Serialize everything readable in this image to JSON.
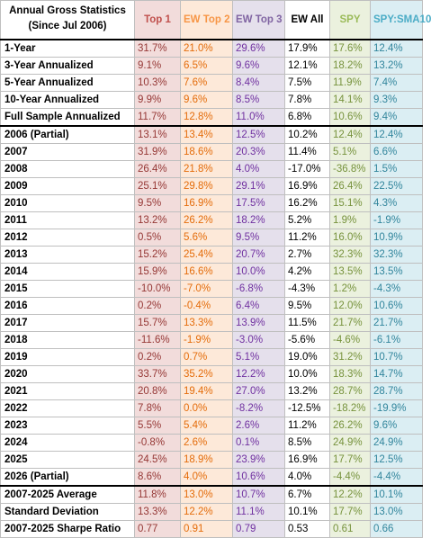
{
  "header": {
    "title_line1": "Annual Gross Statistics",
    "title_line2": "(Since Jul 2006)",
    "columns": [
      "Top 1",
      "EW Top 2",
      "EW Top 3",
      "EW All",
      "SPY",
      "SPY:SMA10"
    ]
  },
  "rows": [
    {
      "label": "1-Year",
      "values": [
        "31.7%",
        "21.0%",
        "29.6%",
        "17.9%",
        "17.6%",
        "12.4%"
      ]
    },
    {
      "label": "3-Year Annualized",
      "values": [
        "9.1%",
        "6.5%",
        "9.6%",
        "12.1%",
        "18.2%",
        "13.2%"
      ]
    },
    {
      "label": "5-Year Annualized",
      "values": [
        "10.3%",
        "7.6%",
        "8.4%",
        "7.5%",
        "11.9%",
        "7.4%"
      ]
    },
    {
      "label": "10-Year Annualized",
      "values": [
        "9.9%",
        "9.6%",
        "8.5%",
        "7.8%",
        "14.1%",
        "9.3%"
      ]
    },
    {
      "label": "Full Sample Annualized",
      "values": [
        "11.7%",
        "12.8%",
        "11.0%",
        "6.8%",
        "10.6%",
        "9.4%"
      ]
    },
    {
      "label": "2006 (Partial)",
      "values": [
        "13.1%",
        "13.4%",
        "12.5%",
        "10.2%",
        "12.4%",
        "12.4%"
      ]
    },
    {
      "label": "2007",
      "values": [
        "31.9%",
        "18.6%",
        "20.3%",
        "11.4%",
        "5.1%",
        "6.6%"
      ]
    },
    {
      "label": "2008",
      "values": [
        "26.4%",
        "21.8%",
        "4.0%",
        "-17.0%",
        "-36.8%",
        "1.5%"
      ]
    },
    {
      "label": "2009",
      "values": [
        "25.1%",
        "29.8%",
        "29.1%",
        "16.9%",
        "26.4%",
        "22.5%"
      ]
    },
    {
      "label": "2010",
      "values": [
        "9.5%",
        "16.9%",
        "17.5%",
        "16.2%",
        "15.1%",
        "4.3%"
      ]
    },
    {
      "label": "2011",
      "values": [
        "13.2%",
        "26.2%",
        "18.2%",
        "5.2%",
        "1.9%",
        "-1.9%"
      ]
    },
    {
      "label": "2012",
      "values": [
        "0.5%",
        "5.6%",
        "9.5%",
        "11.2%",
        "16.0%",
        "10.9%"
      ]
    },
    {
      "label": "2013",
      "values": [
        "15.2%",
        "25.4%",
        "20.7%",
        "2.7%",
        "32.3%",
        "32.3%"
      ]
    },
    {
      "label": "2014",
      "values": [
        "15.9%",
        "16.6%",
        "10.0%",
        "4.2%",
        "13.5%",
        "13.5%"
      ]
    },
    {
      "label": "2015",
      "values": [
        "-10.0%",
        "-7.0%",
        "-6.8%",
        "-4.3%",
        "1.2%",
        "-4.3%"
      ]
    },
    {
      "label": "2016",
      "values": [
        "0.2%",
        "-0.4%",
        "6.4%",
        "9.5%",
        "12.0%",
        "10.6%"
      ]
    },
    {
      "label": "2017",
      "values": [
        "15.7%",
        "13.3%",
        "13.9%",
        "11.5%",
        "21.7%",
        "21.7%"
      ]
    },
    {
      "label": "2018",
      "values": [
        "-11.6%",
        "-1.9%",
        "-3.0%",
        "-5.6%",
        "-4.6%",
        "-6.1%"
      ]
    },
    {
      "label": "2019",
      "values": [
        "0.2%",
        "0.7%",
        "5.1%",
        "19.0%",
        "31.2%",
        "10.7%"
      ]
    },
    {
      "label": "2020",
      "values": [
        "33.7%",
        "35.2%",
        "12.2%",
        "10.0%",
        "18.3%",
        "14.7%"
      ]
    },
    {
      "label": "2021",
      "values": [
        "20.8%",
        "19.4%",
        "27.0%",
        "13.2%",
        "28.7%",
        "28.7%"
      ]
    },
    {
      "label": "2022",
      "values": [
        "7.8%",
        "0.0%",
        "-8.2%",
        "-12.5%",
        "-18.2%",
        "-19.9%"
      ]
    },
    {
      "label": "2023",
      "values": [
        "5.5%",
        "5.4%",
        "2.6%",
        "11.2%",
        "26.2%",
        "9.6%"
      ]
    },
    {
      "label": "2024",
      "values": [
        "-0.8%",
        "2.6%",
        "0.1%",
        "8.5%",
        "24.9%",
        "24.9%"
      ]
    },
    {
      "label": "2025",
      "values": [
        "24.5%",
        "18.9%",
        "23.9%",
        "16.9%",
        "17.7%",
        "12.5%"
      ]
    },
    {
      "label": "2026 (Partial)",
      "values": [
        "8.6%",
        "4.0%",
        "10.6%",
        "4.0%",
        "-4.4%",
        "-4.4%"
      ]
    },
    {
      "label": "2007-2025 Average",
      "values": [
        "11.8%",
        "13.0%",
        "10.7%",
        "6.7%",
        "12.2%",
        "10.1%"
      ]
    },
    {
      "label": "Standard Deviation",
      "values": [
        "13.3%",
        "12.2%",
        "11.1%",
        "10.1%",
        "17.7%",
        "13.0%"
      ]
    },
    {
      "label": "2007-2025 Sharpe Ratio",
      "values": [
        "0.77",
        "0.91",
        "0.79",
        "0.53",
        "0.61",
        "0.66"
      ]
    }
  ],
  "colors": {
    "top1": "#953735",
    "ew_top2": "#e46c0a",
    "ew_top3": "#7030a0",
    "ew_all": "#000000",
    "spy": "#76923c",
    "spy_sma10": "#31859c"
  }
}
